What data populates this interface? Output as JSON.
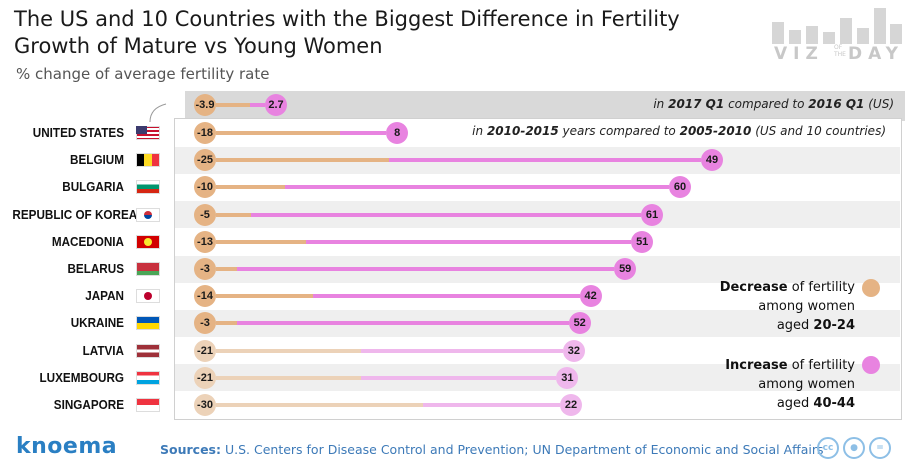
{
  "title": "The US and 10 Countries with the Biggest Difference in Fertility Growth of Mature vs Young Women",
  "subtitle": "% change of average fertility rate",
  "logo": {
    "text_left": "VIZ",
    "small_text": "OF THE",
    "text_right": "DAY"
  },
  "brand": "knoema",
  "source": {
    "label": "Sources:",
    "text": "U.S. Centers for Disease Control and Prevention; UN Department of Economic and Social Affairs"
  },
  "notes": {
    "quarter": {
      "pre": "in ",
      "b1": "2017 Q1",
      "mid": " compared to ",
      "b2": "2016 Q1",
      "post": " (US)"
    },
    "period": {
      "pre": "in ",
      "b1": "2010-2015",
      "mid": " years compared to ",
      "b2": "2005-2010",
      "post": " (US and 10 countries)"
    }
  },
  "legend": {
    "decrease": {
      "bold": "Decrease",
      "line1": " of fertility",
      "line2": "among women",
      "line3_pre": "aged ",
      "line3_bold": "20-24"
    },
    "increase": {
      "bold": "Increase",
      "line1": " of fertility",
      "line2": "among women",
      "line3_pre": "aged ",
      "line3_bold": "40-44"
    }
  },
  "colors": {
    "young": "#e5b384",
    "mature": "#e883e0",
    "young_light": "#ecd2b8",
    "mature_light": "#efb7ec",
    "header_box": "#d9d9d9",
    "stripe": "#efefef",
    "brand": "#2a7fc3"
  },
  "icons": [
    "us-flag-icon",
    "belgium-flag-icon",
    "bulgaria-flag-icon",
    "korea-flag-icon",
    "macedonia-flag-icon",
    "belarus-flag-icon",
    "japan-flag-icon",
    "ukraine-flag-icon",
    "latvia-flag-icon",
    "luxembourg-flag-icon",
    "singapore-flag-icon",
    "cc-icon",
    "by-icon",
    "nd-icon"
  ],
  "chart_data": {
    "type": "dumbbell",
    "series": [
      {
        "name": "Decrease of fertility among women aged 20-24",
        "color": "#e5b384"
      },
      {
        "name": "Increase of fertility among women aged 40-44",
        "color": "#e883e0"
      }
    ],
    "quarter_comparison": {
      "country": "United States",
      "young": -3.9,
      "mature": 2.7
    },
    "rows": [
      {
        "country": "UNITED STATES",
        "flag": "us",
        "young": -18,
        "mature": 8
      },
      {
        "country": "BELGIUM",
        "flag": "be",
        "young": -25,
        "mature": 49
      },
      {
        "country": "BULGARIA",
        "flag": "bg",
        "young": -10,
        "mature": 60
      },
      {
        "country": "REPUBLIC OF KOREA",
        "flag": "kr",
        "young": -5,
        "mature": 61
      },
      {
        "country": "MACEDONIA",
        "flag": "mk",
        "young": -13,
        "mature": 51
      },
      {
        "country": "BELARUS",
        "flag": "by",
        "young": -3,
        "mature": 59
      },
      {
        "country": "JAPAN",
        "flag": "jp",
        "young": -14,
        "mature": 42
      },
      {
        "country": "UKRAINE",
        "flag": "ua",
        "young": -3,
        "mature": 52
      },
      {
        "country": "LATVIA",
        "flag": "lv",
        "young": -21,
        "mature": 32
      },
      {
        "country": "LUXEMBOURG",
        "flag": "lu",
        "young": -21,
        "mature": 31
      },
      {
        "country": "SINGAPORE",
        "flag": "sg",
        "young": -30,
        "mature": 22
      }
    ]
  }
}
